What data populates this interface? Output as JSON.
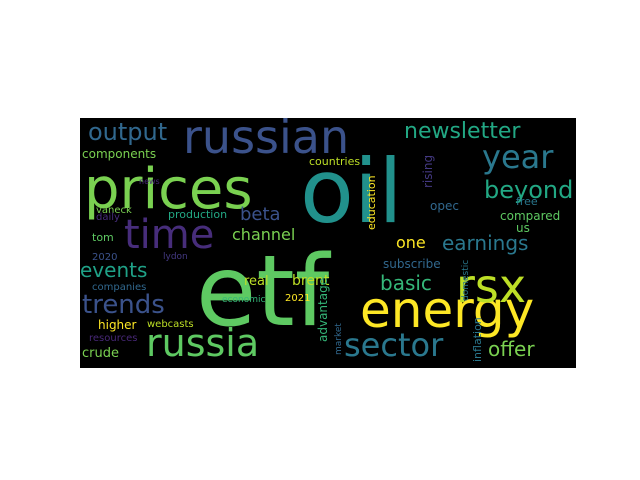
{
  "word_cloud": {
    "background": "#000000",
    "words": [
      {
        "text": "oil",
        "color": "#21918c"
      },
      {
        "text": "etf",
        "color": "#5ec962"
      },
      {
        "text": "prices",
        "color": "#7ad151"
      },
      {
        "text": "russian",
        "color": "#3b528b"
      },
      {
        "text": "energy",
        "color": "#fde725"
      },
      {
        "text": "rsx",
        "color": "#bddf26"
      },
      {
        "text": "time",
        "color": "#472d7b"
      },
      {
        "text": "russia",
        "color": "#5ec962"
      },
      {
        "text": "sector",
        "color": "#2a788e"
      },
      {
        "text": "year",
        "color": "#2a788e"
      },
      {
        "text": "newsletter",
        "color": "#22a884"
      },
      {
        "text": "output",
        "color": "#31688e"
      },
      {
        "text": "beyond",
        "color": "#22a884"
      },
      {
        "text": "earnings",
        "color": "#2a788e"
      },
      {
        "text": "trends",
        "color": "#3b528b"
      },
      {
        "text": "events",
        "color": "#1fa187"
      },
      {
        "text": "basic",
        "color": "#35b779"
      },
      {
        "text": "offer",
        "color": "#7ad151"
      },
      {
        "text": "beta",
        "color": "#3b528b"
      },
      {
        "text": "channel",
        "color": "#7ad151"
      },
      {
        "text": "one",
        "color": "#fde725"
      },
      {
        "text": "brent",
        "color": "#bddf26"
      },
      {
        "text": "real",
        "color": "#bddf26"
      },
      {
        "text": "components",
        "color": "#7ad151"
      },
      {
        "text": "countries",
        "color": "#bddf26"
      },
      {
        "text": "rising",
        "color": "#443983"
      },
      {
        "text": "education",
        "color": "#fde725"
      },
      {
        "text": "opec",
        "color": "#31688e"
      },
      {
        "text": "free",
        "color": "#2a788e"
      },
      {
        "text": "compared",
        "color": "#5ec962"
      },
      {
        "text": "us",
        "color": "#5ec962"
      },
      {
        "text": "subscribe",
        "color": "#31688e"
      },
      {
        "text": "vaneck",
        "color": "#7ad151"
      },
      {
        "text": "production",
        "color": "#22a884"
      },
      {
        "text": "tom",
        "color": "#5ec962"
      },
      {
        "text": "lydon",
        "color": "#443983"
      },
      {
        "text": "daily",
        "color": "#472d7b"
      },
      {
        "text": "2020",
        "color": "#3b528b"
      },
      {
        "text": "companies",
        "color": "#31688e"
      },
      {
        "text": "news",
        "color": "#482878"
      },
      {
        "text": "higher",
        "color": "#fde725"
      },
      {
        "text": "webcasts",
        "color": "#bddf26"
      },
      {
        "text": "resources",
        "color": "#482878"
      },
      {
        "text": "crude",
        "color": "#7ad151"
      },
      {
        "text": "economic",
        "color": "#35b779"
      },
      {
        "text": "2021",
        "color": "#fde725"
      },
      {
        "text": "advantage",
        "color": "#35b779"
      },
      {
        "text": "market",
        "color": "#31688e"
      },
      {
        "text": "inflation",
        "color": "#2a788e"
      },
      {
        "text": "domestic",
        "color": "#2a788e"
      }
    ]
  }
}
